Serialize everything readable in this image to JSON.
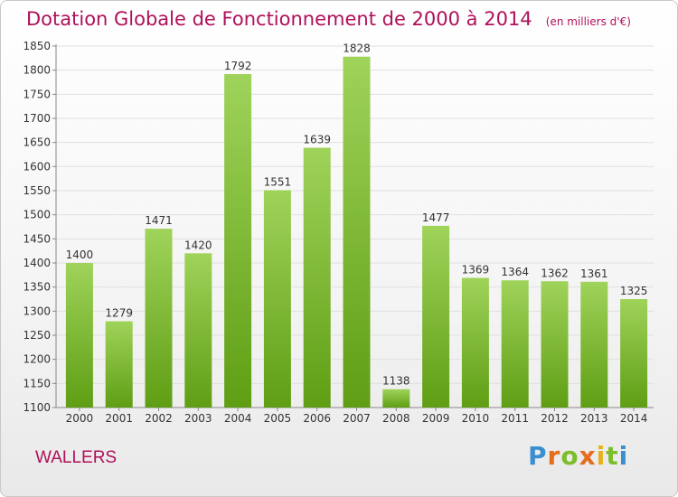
{
  "header": {
    "title": "Dotation Globale de Fonctionnement de 2000 à 2014",
    "unit": "(en milliers d'€)"
  },
  "footer": {
    "city": "WALLERS",
    "logo": "Proxiti"
  },
  "colors": {
    "title": "#b0105a",
    "bar_light": "#9fd35a",
    "bar_dark": "#5f9e14",
    "grid": "#e0e0e0"
  },
  "chart_data": {
    "type": "bar",
    "title": "Dotation Globale de Fonctionnement de 2000 à 2014",
    "subtitle": "(en milliers d'€)",
    "xlabel": "",
    "ylabel": "",
    "categories": [
      "2000",
      "2001",
      "2002",
      "2003",
      "2004",
      "2005",
      "2006",
      "2007",
      "2008",
      "2009",
      "2010",
      "2011",
      "2012",
      "2013",
      "2014"
    ],
    "values": [
      1400,
      1279,
      1471,
      1420,
      1792,
      1551,
      1639,
      1828,
      1138,
      1477,
      1369,
      1364,
      1362,
      1361,
      1325
    ],
    "ylim": [
      1100,
      1850
    ],
    "yticks": [
      1100,
      1150,
      1200,
      1250,
      1300,
      1350,
      1400,
      1450,
      1500,
      1550,
      1600,
      1650,
      1700,
      1750,
      1800,
      1850
    ],
    "grid": true,
    "data_labels": true
  }
}
